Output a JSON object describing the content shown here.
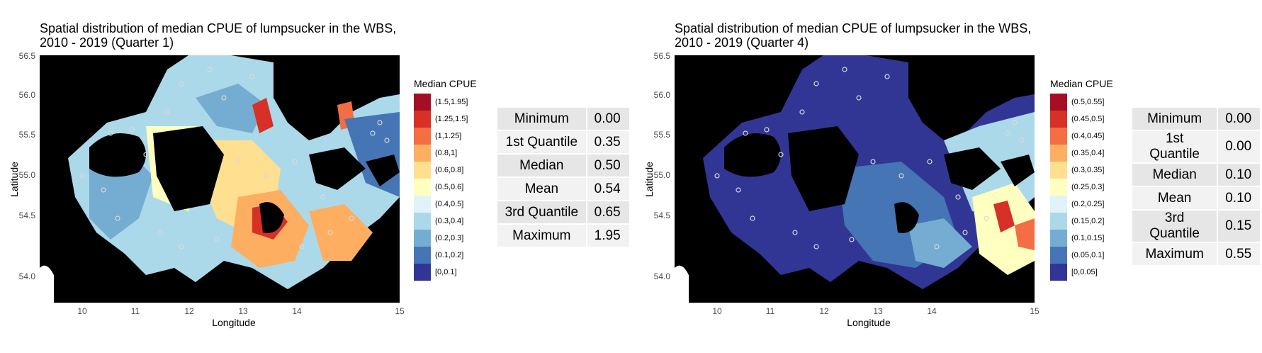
{
  "panels": [
    {
      "title": "Spatial distribution of median CPUE of lumpsucker in the WBS,\n2010 - 2019 (Quarter 1)",
      "xlabel": "Longitude",
      "ylabel": "Latitude",
      "yticks": [
        "56.5",
        "56.0",
        "55.5",
        "55.0",
        "54.5",
        "54.0"
      ],
      "xticks": [
        "10",
        "11",
        "12",
        "13",
        "14",
        "15"
      ],
      "legend_title": "Median CPUE",
      "legend": [
        {
          "label": "(1.5,1.95]",
          "color": "#a50f26"
        },
        {
          "label": "(1.25,1.5]",
          "color": "#d73027"
        },
        {
          "label": "(1,1.25]",
          "color": "#f46d43"
        },
        {
          "label": "(0.8,1]",
          "color": "#fdae61"
        },
        {
          "label": "(0.6,0.8]",
          "color": "#fee090"
        },
        {
          "label": "(0.5,0.6]",
          "color": "#ffffbf"
        },
        {
          "label": "(0.4,0.5]",
          "color": "#e0f3f8"
        },
        {
          "label": "(0.3,0.4]",
          "color": "#abd9e9"
        },
        {
          "label": "(0.2,0.3]",
          "color": "#74add1"
        },
        {
          "label": "(0.1,0.2]",
          "color": "#4575b4"
        },
        {
          "label": "[0,0.1]",
          "color": "#313695"
        }
      ],
      "stats": [
        {
          "name": "Minimum",
          "value": "0.00"
        },
        {
          "name": "1st Quantile",
          "value": "0.35"
        },
        {
          "name": "Median",
          "value": "0.50"
        },
        {
          "name": "Mean",
          "value": "0.54"
        },
        {
          "name": "3rd Quantile",
          "value": "0.65"
        },
        {
          "name": "Maximum",
          "value": "1.95"
        }
      ]
    },
    {
      "title": "Spatial distribution of median CPUE of lumpsucker in the WBS,\n2010 - 2019 (Quarter 4)",
      "xlabel": "Longitude",
      "ylabel": "Latitude",
      "yticks": [
        "56.5",
        "56.0",
        "55.5",
        "55.0",
        "54.5",
        "54.0"
      ],
      "xticks": [
        "10",
        "11",
        "12",
        "13",
        "14",
        "15"
      ],
      "legend_title": "Median CPUE",
      "legend": [
        {
          "label": "(0.5,0.55]",
          "color": "#a50f26"
        },
        {
          "label": "(0.45,0.5]",
          "color": "#d73027"
        },
        {
          "label": "(0.4,0.45]",
          "color": "#f46d43"
        },
        {
          "label": "(0.35,0.4]",
          "color": "#fdae61"
        },
        {
          "label": "(0.3,0.35]",
          "color": "#fee090"
        },
        {
          "label": "(0.25,0.3]",
          "color": "#ffffbf"
        },
        {
          "label": "(0.2,0.25]",
          "color": "#e0f3f8"
        },
        {
          "label": "(0.15,0.2]",
          "color": "#abd9e9"
        },
        {
          "label": "(0.1,0.15]",
          "color": "#74add1"
        },
        {
          "label": "(0.05,0.1]",
          "color": "#4575b4"
        },
        {
          "label": "[0,0.05]",
          "color": "#313695"
        }
      ],
      "stats": [
        {
          "name": "Minimum",
          "value": "0.00"
        },
        {
          "name": "1st Quantile",
          "value": "0.00"
        },
        {
          "name": "Median",
          "value": "0.10"
        },
        {
          "name": "Mean",
          "value": "0.10"
        },
        {
          "name": "3rd Quantile",
          "value": "0.15"
        },
        {
          "name": "Maximum",
          "value": "0.55"
        }
      ]
    }
  ]
}
